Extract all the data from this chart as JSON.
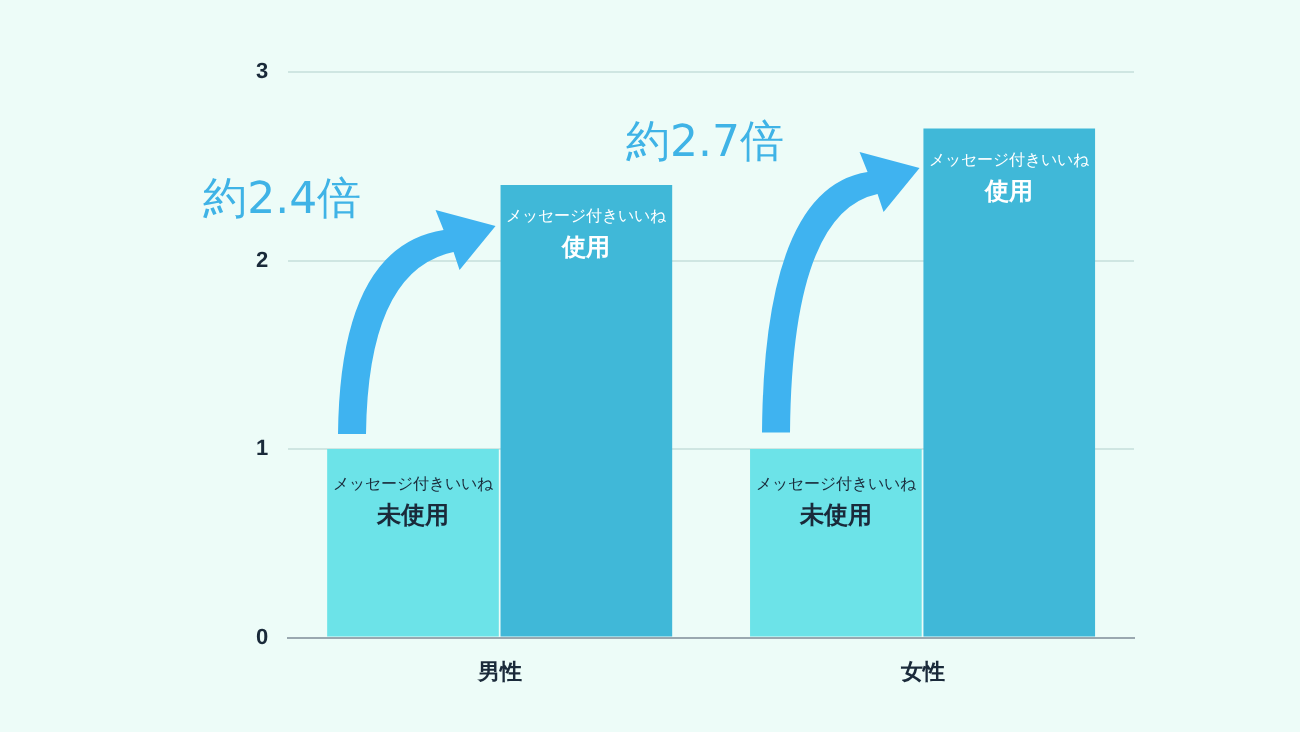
{
  "chart_data": {
    "type": "bar",
    "categories": [
      "男性",
      "女性"
    ],
    "series": [
      {
        "name": "メッセージ付きいいね未使用",
        "color": "#6ce3e8",
        "values": [
          1,
          1
        ]
      },
      {
        "name": "メッセージ付きいいね使用",
        "color": "#40b8d8",
        "values": [
          2.4,
          2.7
        ]
      }
    ],
    "ylim": [
      0,
      3
    ],
    "yticks": [
      0,
      1,
      2,
      3
    ],
    "grid": "y",
    "legend": false,
    "annotations": [
      "約2.4倍",
      "約2.7倍"
    ]
  }
}
